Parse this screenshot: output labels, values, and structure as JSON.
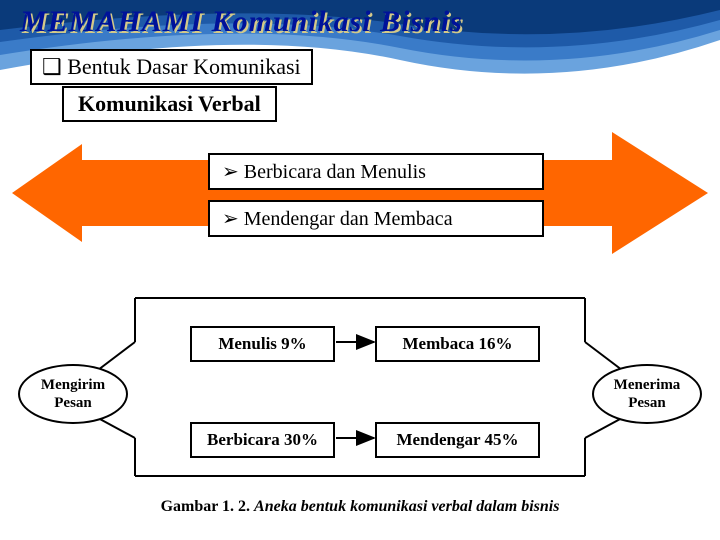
{
  "title": "MEMAHAMI Komunikasi Bisnis",
  "box1": "Bentuk Dasar Komunikasi",
  "box2": "Komunikasi Verbal",
  "box3": "Berbicara dan Menulis",
  "box4": "Mendengar dan Membaca",
  "diagram": {
    "left_ellipse": "Mengirim\nPesan",
    "right_ellipse": "Menerima\nPesan",
    "tl": "Menulis 9%",
    "tr": "Membaca 16%",
    "bl": "Berbicara 30%",
    "br": "Mendengar 45%"
  },
  "caption_fig": "Gambar 1. 2. ",
  "caption_desc": "Aneka bentuk komunikasi verbal dalam bisnis",
  "colors": {
    "title_color": "#001299",
    "title_shadow": "#d4c988",
    "arrow_fill": "#ff6600",
    "curve1": "#0a3a7a",
    "curve2": "#1e5aa8",
    "curve3": "#3a7bc8",
    "curve4": "#6aa3de"
  }
}
